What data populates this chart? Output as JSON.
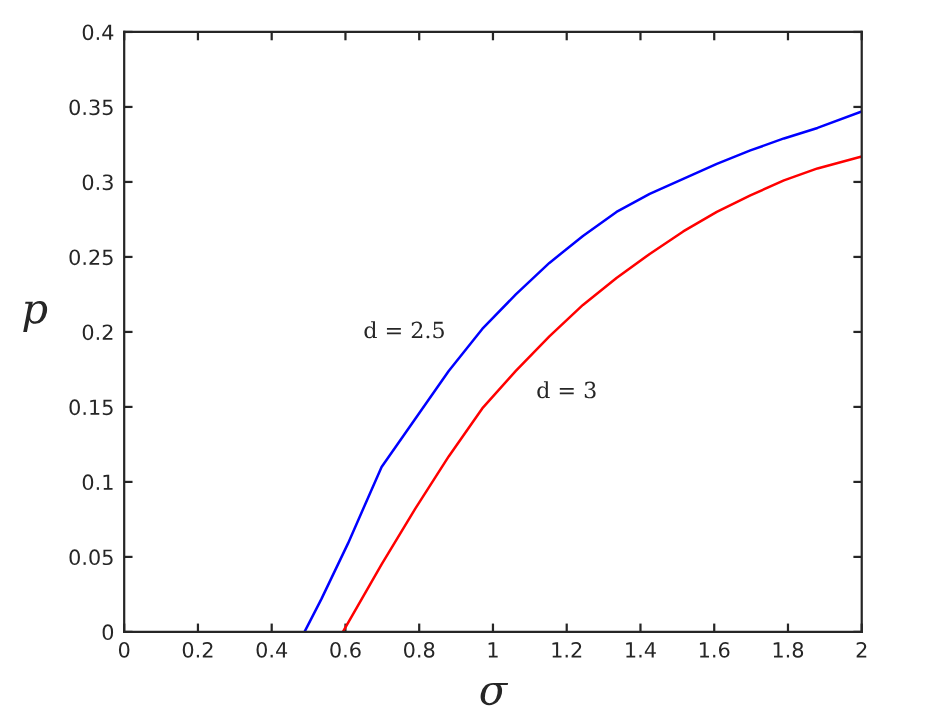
{
  "chart_data": {
    "type": "line",
    "xlabel": "σ",
    "ylabel": "p",
    "xlim": [
      0,
      2
    ],
    "xticks": [
      0,
      0.2,
      0.4,
      0.6,
      0.8,
      1,
      1.2,
      1.4,
      1.6,
      1.8,
      2
    ],
    "ylim": [
      0,
      0.4
    ],
    "yticks": [
      0,
      0.05,
      0.1,
      0.15,
      0.2,
      0.25,
      0.3,
      0.35,
      0.4
    ],
    "grid": false,
    "legend": false,
    "marker": "none",
    "line_style": "solid",
    "series": [
      {
        "color": "#0000ff",
        "x": [
          0.489,
          0.535,
          0.607,
          0.698,
          0.789,
          0.88,
          0.971,
          1.062,
          1.153,
          1.244,
          1.335,
          1.425,
          1.516,
          1.607,
          1.698,
          1.789,
          1.88,
          2.0
        ],
        "values": [
          0,
          0.022,
          0.059,
          0.11,
          0.142,
          0.174,
          0.202,
          0.225,
          0.246,
          0.264,
          0.28,
          0.292,
          0.302,
          0.312,
          0.321,
          0.329,
          0.336,
          0.347
        ]
      },
      {
        "color": "#ff0000",
        "x": [
          0.593,
          0.698,
          0.789,
          0.88,
          0.971,
          1.062,
          1.153,
          1.244,
          1.335,
          1.425,
          1.516,
          1.607,
          1.698,
          1.789,
          1.88,
          2.0
        ],
        "values": [
          0,
          0.045,
          0.082,
          0.117,
          0.149,
          0.174,
          0.197,
          0.218,
          0.236,
          0.252,
          0.267,
          0.28,
          0.291,
          0.301,
          0.309,
          0.317
        ]
      }
    ],
    "annotations": [
      "d = 2.5",
      "d = 3"
    ]
  }
}
